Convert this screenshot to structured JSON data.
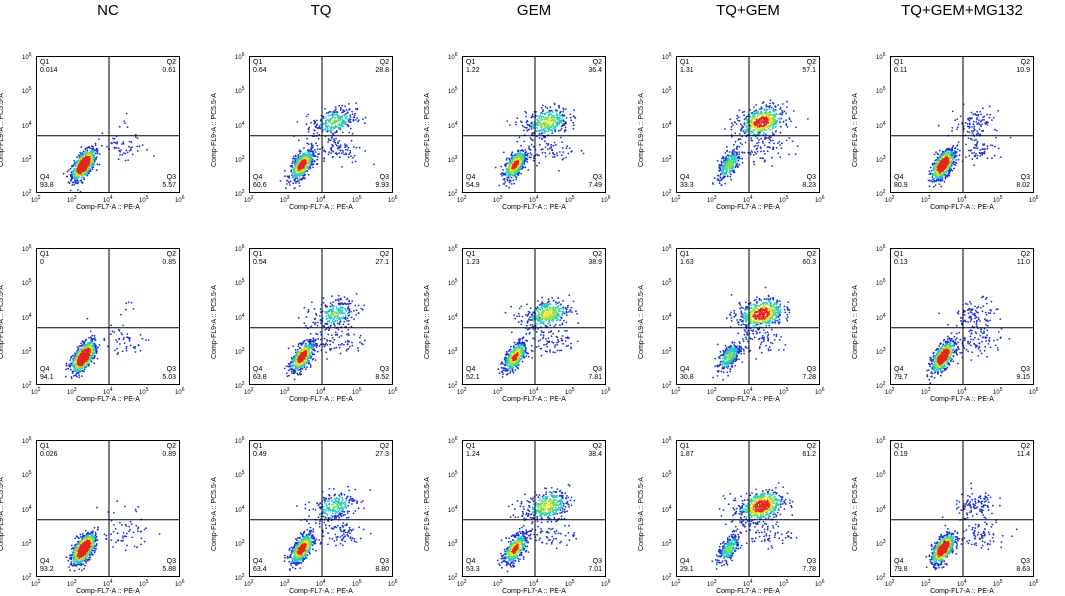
{
  "chart_data": {
    "type": "scatter",
    "subtype": "flow-cytometry-density-grid",
    "columns": [
      "NC",
      "TQ",
      "GEM",
      "TQ+GEM",
      "TQ+GEM+MG132"
    ],
    "xlabel": "Comp-FL7-A :: PE-A",
    "ylabel": "Comp-FL9-A :: PC5.5-A",
    "x_ticks": [
      "2",
      "3",
      "4",
      "5",
      "6"
    ],
    "y_ticks": [
      "2",
      "3",
      "4",
      "5",
      "6"
    ],
    "tick_base": "10",
    "xlim": [
      100,
      1000000
    ],
    "ylim": [
      100,
      1000000
    ],
    "quadrant_names": [
      "Q1",
      "Q2",
      "Q3",
      "Q4"
    ],
    "quadrant_labels": {
      "q1": "Q1",
      "q2": "Q2",
      "q3": "Q3",
      "q4": "Q4"
    },
    "rows": [
      [
        {
          "q1": "0.014",
          "q2": "0.61",
          "q3": "5.57",
          "q4": "93.8"
        },
        {
          "q1": "0.64",
          "q2": "28.8",
          "q3": "9.93",
          "q4": "60.6"
        },
        {
          "q1": "1.22",
          "q2": "36.4",
          "q3": "7.49",
          "q4": "54.9"
        },
        {
          "q1": "1.31",
          "q2": "57.1",
          "q3": "8.23",
          "q4": "33.3"
        },
        {
          "q1": "0.11",
          "q2": "10.9",
          "q3": "8.02",
          "q4": "80.9"
        }
      ],
      [
        {
          "q1": "0",
          "q2": "0.85",
          "q3": "5.03",
          "q4": "94.1"
        },
        {
          "q1": "0.54",
          "q2": "27.1",
          "q3": "8.52",
          "q4": "63.8"
        },
        {
          "q1": "1.23",
          "q2": "38.9",
          "q3": "7.81",
          "q4": "52.1"
        },
        {
          "q1": "1.63",
          "q2": "60.3",
          "q3": "7.28",
          "q4": "30.8"
        },
        {
          "q1": "0.13",
          "q2": "11.0",
          "q3": "9.15",
          "q4": "79.7"
        }
      ],
      [
        {
          "q1": "0.026",
          "q2": "0.89",
          "q3": "5.88",
          "q4": "93.2"
        },
        {
          "q1": "0.49",
          "q2": "27.3",
          "q3": "8.80",
          "q4": "63.4"
        },
        {
          "q1": "1.24",
          "q2": "38.4",
          "q3": "7.01",
          "q4": "53.3"
        },
        {
          "q1": "1.87",
          "q2": "61.2",
          "q3": "7.78",
          "q4": "29.1"
        },
        {
          "q1": "0.19",
          "q2": "11.4",
          "q3": "8.63",
          "q4": "79.8"
        }
      ]
    ],
    "gate": {
      "x": 10000,
      "y": 5000
    },
    "colors": {
      "low": "#1a2fd6",
      "mid": "#22c7c7",
      "mid2": "#7ee04a",
      "high": "#f3e21c",
      "peak": "#e0281e",
      "axis": "#000000"
    }
  }
}
